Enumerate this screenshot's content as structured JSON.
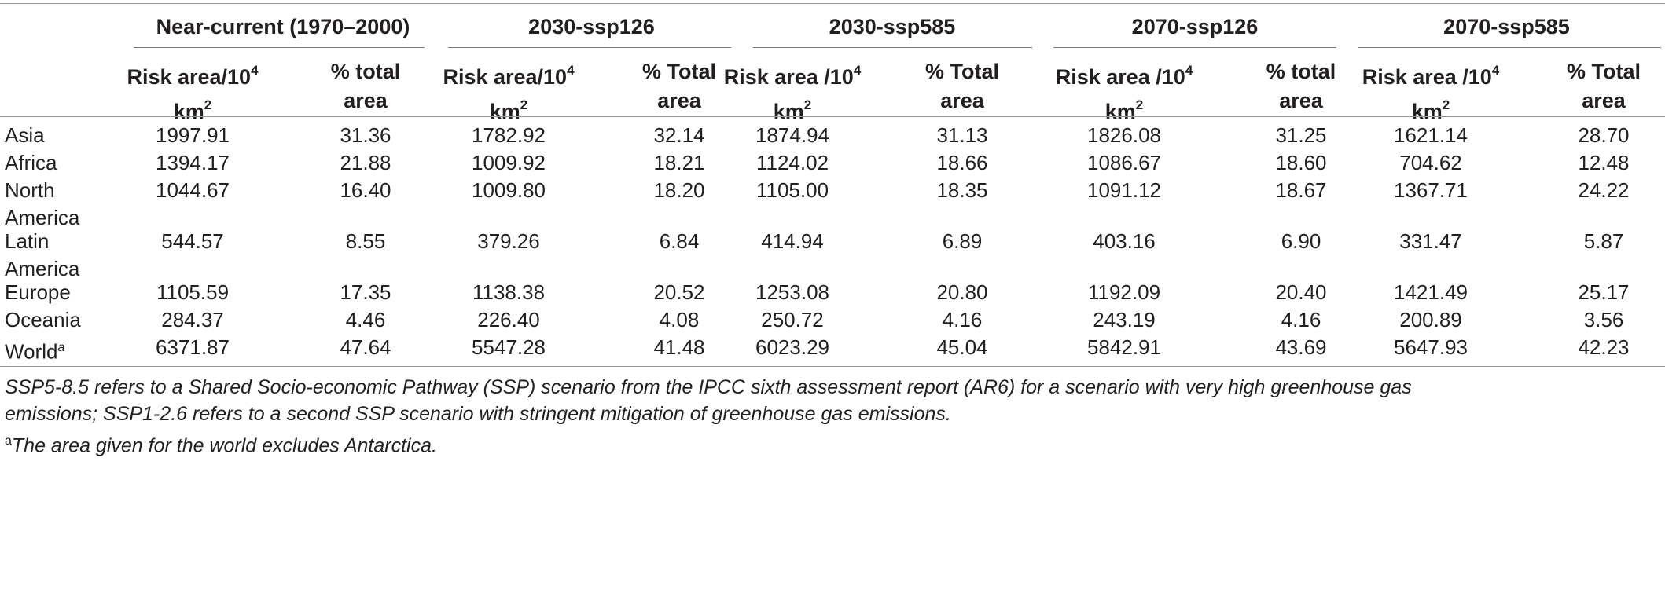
{
  "table": {
    "groups": [
      "Near-current (1970–2000)",
      "2030-ssp126",
      "2030-ssp585",
      "2070-ssp126",
      "2070-ssp585"
    ],
    "sub_headers": [
      {
        "line1": "Risk area/10",
        "sup": "4",
        "line2": "km",
        "sup2": "2",
        "pct1": "% total",
        "pct2": "area"
      },
      {
        "line1": "Risk area/10",
        "sup": "4",
        "line2": "km",
        "sup2": "2",
        "pct1": "% Total",
        "pct2": "area"
      },
      {
        "line1": "Risk area /10",
        "sup": "4",
        "line2": "km",
        "sup2": "2",
        "pct1": "% Total",
        "pct2": "area"
      },
      {
        "line1": "Risk area /10",
        "sup": "4",
        "line2": "km",
        "sup2": "2",
        "pct1": "% total",
        "pct2": "area"
      },
      {
        "line1": "Risk area /10",
        "sup": "4",
        "line2": "km",
        "sup2": "2",
        "pct1": "% Total",
        "pct2": "area"
      }
    ],
    "rows": [
      {
        "label": "Asia",
        "label_sup": "",
        "values": [
          "1997.91",
          "31.36",
          "1782.92",
          "32.14",
          "1874.94",
          "31.13",
          "1826.08",
          "31.25",
          "1621.14",
          "28.70"
        ]
      },
      {
        "label": "Africa",
        "label_sup": "",
        "values": [
          "1394.17",
          "21.88",
          "1009.92",
          "18.21",
          "1124.02",
          "18.66",
          "1086.67",
          "18.60",
          "704.62",
          "12.48"
        ]
      },
      {
        "label": "North America",
        "label_sup": "",
        "values": [
          "1044.67",
          "16.40",
          "1009.80",
          "18.20",
          "1105.00",
          "18.35",
          "1091.12",
          "18.67",
          "1367.71",
          "24.22"
        ]
      },
      {
        "label": "Latin America",
        "label_sup": "",
        "values": [
          "544.57",
          "8.55",
          "379.26",
          "6.84",
          "414.94",
          "6.89",
          "403.16",
          "6.90",
          "331.47",
          "5.87"
        ]
      },
      {
        "label": "Europe",
        "label_sup": "",
        "values": [
          "1105.59",
          "17.35",
          "1138.38",
          "20.52",
          "1253.08",
          "20.80",
          "1192.09",
          "20.40",
          "1421.49",
          "25.17"
        ]
      },
      {
        "label": "Oceania",
        "label_sup": "",
        "values": [
          "284.37",
          "4.46",
          "226.40",
          "4.08",
          "250.72",
          "4.16",
          "243.19",
          "4.16",
          "200.89",
          "3.56"
        ]
      },
      {
        "label": "World",
        "label_sup": "a",
        "values": [
          "6371.87",
          "47.64",
          "5547.28",
          "41.48",
          "6023.29",
          "45.04",
          "5842.91",
          "43.69",
          "5647.93",
          "42.23"
        ]
      }
    ]
  },
  "footnotes": {
    "note_line1": "SSP5-8.5 refers to a Shared Socio-economic Pathway (SSP) scenario from the IPCC sixth assessment report (AR6) for a scenario with very high greenhouse gas",
    "note_line2": "emissions; SSP1-2.6 refers to a second SSP scenario with stringent mitigation of greenhouse gas emissions.",
    "a_mark": "a",
    "a_text": "The area given for the world excludes Antarctica."
  }
}
